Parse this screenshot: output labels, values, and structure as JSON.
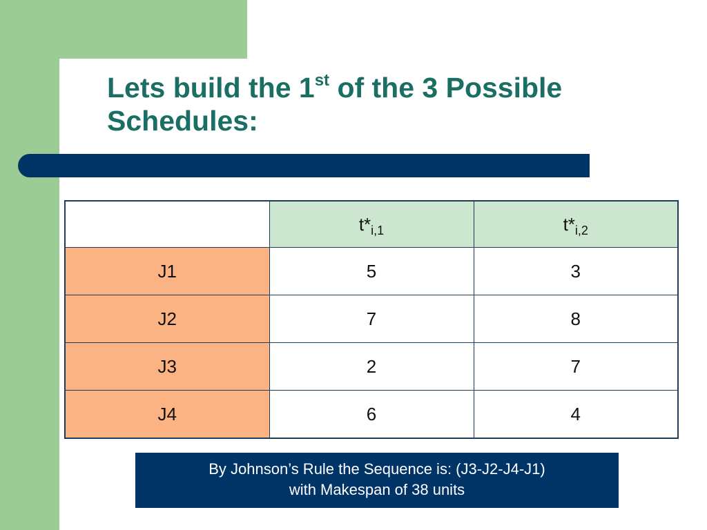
{
  "slide": {
    "title_part1": "Lets build the 1",
    "title_sup": "st",
    "title_part2": " of the 3 Possible Schedules:"
  },
  "table": {
    "header_blank": "",
    "columns": [
      {
        "base": "t*",
        "sub": "i,1"
      },
      {
        "base": "t*",
        "sub": "i,2"
      }
    ],
    "rows": [
      {
        "job": "J1",
        "values": [
          "5",
          "3"
        ]
      },
      {
        "job": "J2",
        "values": [
          "7",
          "8"
        ]
      },
      {
        "job": "J3",
        "values": [
          "2",
          "7"
        ]
      },
      {
        "job": "J4",
        "values": [
          "6",
          "4"
        ]
      }
    ]
  },
  "note": {
    "line1": "By Johnson’s Rule the Sequence is: (J3-J2-J4-J1)",
    "line2": "with Makespan of 38 units"
  },
  "colors": {
    "title": "#1a6e63",
    "accent_navy": "#003366",
    "side_green": "#9ccc95",
    "header_green": "#cde6cf",
    "row_orange": "#fbb383"
  }
}
